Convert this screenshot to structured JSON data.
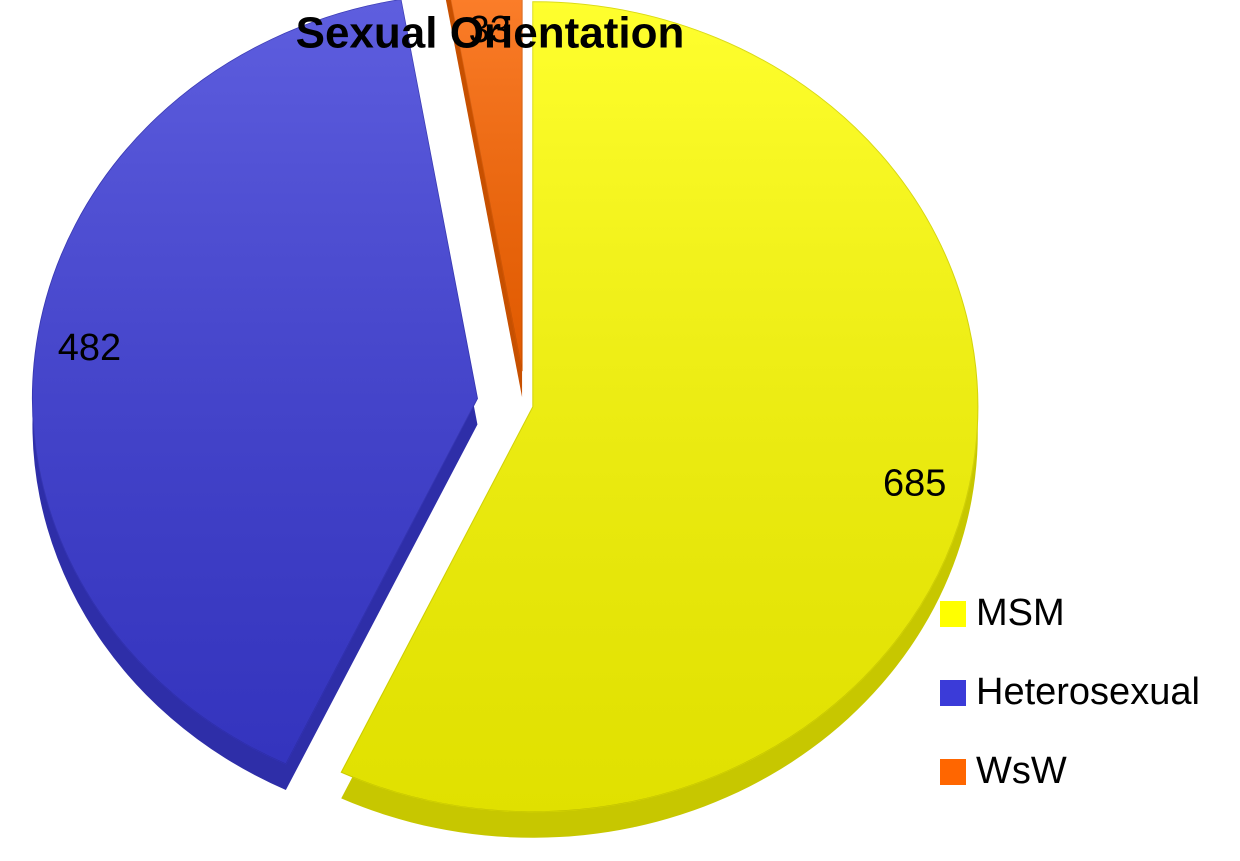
{
  "chart_data": {
    "type": "pie",
    "title": "Sexual Orientation",
    "categories": [
      "MSM",
      "Heterosexual",
      "WsW"
    ],
    "values": [
      685,
      482,
      33
    ],
    "colors": [
      "#ffff00",
      "#3b3bd8",
      "#ff6600"
    ],
    "legend": "right"
  }
}
